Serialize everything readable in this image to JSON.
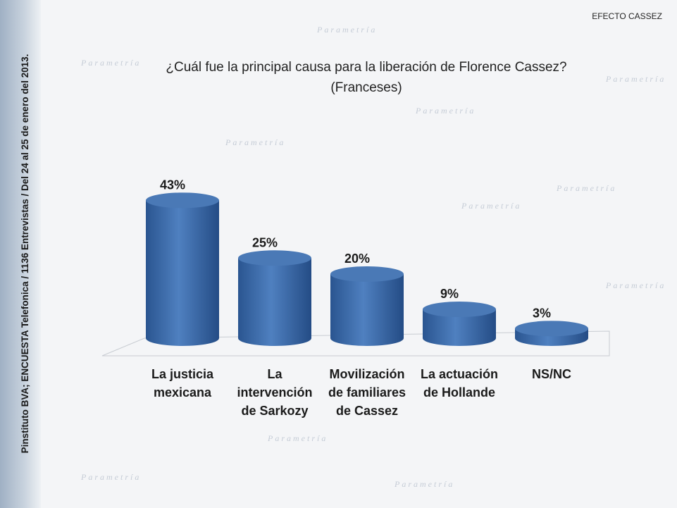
{
  "header": "EFECTO CASSEZ",
  "source": "Pinstituto BVA; ENCUESTA Telefonica / 1136 Entrevistas / Del 24 al 25 de enero del 2013.",
  "watermark": "Parametría",
  "chart_data": {
    "type": "cylinder",
    "title": "¿Cuál fue la principal causa para la liberación de Florence Cassez?",
    "subtitle": "(Franceses)",
    "categories": [
      "La justicia mexicana",
      "La intervención de Sarkozy",
      "Movilización de familiares de Cassez",
      "La actuación de Hollande",
      "NS/NC"
    ],
    "values": [
      43,
      25,
      20,
      9,
      3
    ],
    "value_labels": [
      "43%",
      "25%",
      "20%",
      "9%",
      "3%"
    ],
    "color": "#3a6aa8"
  }
}
